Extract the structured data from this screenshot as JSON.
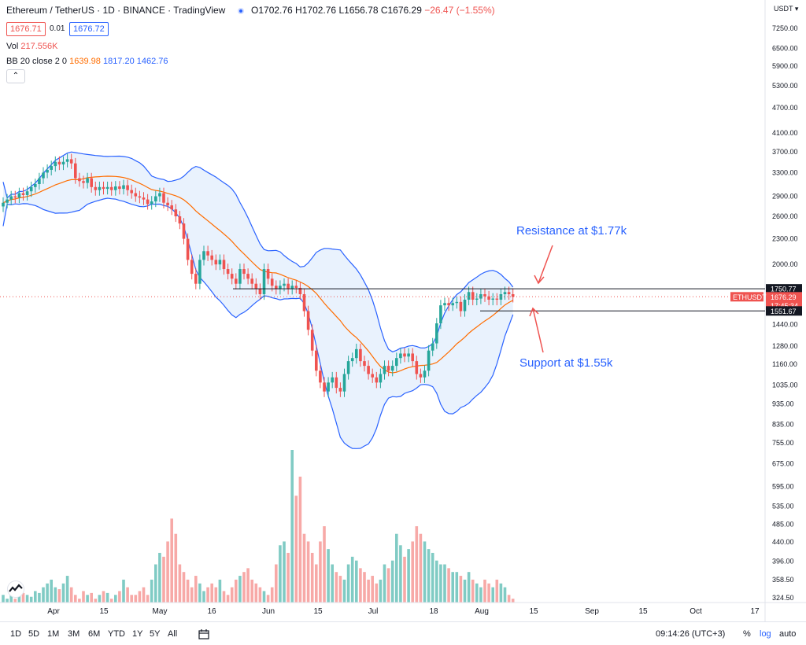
{
  "header": {
    "symbol": "Ethereum / TetherUS · 1D · BINANCE · TradingView",
    "ohlc": "O1702.76 H1702.76 L1656.78 C1676.29",
    "change": "−26.47 (−1.55%)",
    "bid": "1676.71",
    "spread": "0.01",
    "ask": "1676.72",
    "vol_label": "Vol",
    "vol_value": "217.556K",
    "bb_label": "BB 20 close 2 0",
    "bb_basis": "1639.98",
    "bb_upper": "1817.20",
    "bb_lower": "1462.76",
    "collapse_glyph": "⌃"
  },
  "colors": {
    "up": "#26a69a",
    "down": "#ef5350",
    "band": "#2962ff",
    "basis": "#ff6d00",
    "band_fill": "#e3effd",
    "annot": "#2962ff",
    "arrow": "#ef5350"
  },
  "axis": {
    "currency": "USDT ▾",
    "price_ticks": [
      "7250.00",
      "6500.00",
      "5900.00",
      "5300.00",
      "4700.00",
      "4100.00",
      "3700.00",
      "3300.00",
      "2900.00",
      "2600.00",
      "2300.00",
      "2000.00",
      "1750.77",
      "1676.29",
      "17:45:34",
      "1551.67",
      "1440.00",
      "1280.00",
      "1160.00",
      "1035.00",
      "935.00",
      "835.00",
      "755.00",
      "675.00",
      "595.00",
      "535.00",
      "485.00",
      "440.00",
      "396.00",
      "358.50",
      "324.50"
    ],
    "ticker_tag": "ETHUSDT",
    "time_labels": [
      "Apr",
      "15",
      "May",
      "16",
      "Jun",
      "15",
      "Jul",
      "18",
      "Aug",
      "15",
      "Sep",
      "15",
      "Oct",
      "17"
    ]
  },
  "annotations": {
    "resistance": "Resistance at $1.77k",
    "support": "Support at $1.55k"
  },
  "toolbar": {
    "timeframes": [
      "1D",
      "5D",
      "1M",
      "3M",
      "6M",
      "YTD",
      "1Y",
      "5Y",
      "All"
    ],
    "time": "09:14:26 (UTC+3)",
    "percent": "%",
    "log": "log",
    "auto": "auto"
  },
  "chart_data": {
    "type": "candlestick",
    "title": "Ethereum / TetherUS · 1D · BINANCE",
    "ylabel": "USDT",
    "y_scale": "log",
    "ylim": [
      750,
      7500
    ],
    "resistance_level": 1750.77,
    "support_level": 1551.67,
    "last_price": 1676.29,
    "x_range": [
      "2021-03-18",
      "2021-10-24"
    ],
    "x_dates_start": "2021-03-18",
    "candles_close": [
      2800,
      2850,
      2900,
      2880,
      2950,
      2920,
      2980,
      3050,
      3100,
      3200,
      3300,
      3350,
      3420,
      3500,
      3450,
      3500,
      3550,
      3470,
      3200,
      3150,
      3120,
      3200,
      3050,
      3000,
      3050,
      3020,
      3050,
      3000,
      3060,
      3020,
      3080,
      3000,
      2950,
      2900,
      2880,
      2850,
      2780,
      2820,
      2900,
      2950,
      2800,
      2760,
      2700,
      2600,
      2500,
      2300,
      2050,
      1900,
      1800,
      2050,
      2150,
      2100,
      2050,
      2000,
      2050,
      1950,
      1900,
      1850,
      1800,
      1950,
      1900,
      1850,
      1800,
      1750,
      1700,
      1950,
      1850,
      1780,
      1750,
      1780,
      1800,
      1750,
      1780,
      1760,
      1700,
      1550,
      1400,
      1250,
      1120,
      1050,
      1000,
      1050,
      1080,
      1020,
      1000,
      1100,
      1180,
      1200,
      1260,
      1180,
      1150,
      1100,
      1080,
      1050,
      1100,
      1150,
      1120,
      1150,
      1200,
      1230,
      1210,
      1230,
      1180,
      1100,
      1080,
      1120,
      1250,
      1300,
      1450,
      1600,
      1620,
      1600,
      1620,
      1630,
      1550,
      1650,
      1720,
      1650,
      1660,
      1700,
      1680,
      1650,
      1660,
      1650,
      1700,
      1720,
      1700,
      1676
    ],
    "volume": [
      340,
      330,
      350,
      330,
      360,
      345,
      340,
      335,
      350,
      345,
      360,
      370,
      380,
      360,
      355,
      370,
      390,
      360,
      340,
      330,
      350,
      340,
      345,
      330,
      340,
      350,
      345,
      330,
      340,
      350,
      380,
      360,
      340,
      340,
      350,
      360,
      340,
      380,
      420,
      450,
      440,
      480,
      540,
      500,
      420,
      400,
      380,
      360,
      390,
      370,
      350,
      360,
      370,
      360,
      380,
      350,
      340,
      360,
      380,
      390,
      400,
      410,
      380,
      370,
      360,
      350,
      340,
      360,
      420,
      470,
      480,
      450,
      720,
      600,
      650,
      500,
      480,
      450,
      420,
      480,
      520,
      460,
      420,
      400,
      390,
      380,
      420,
      440,
      430,
      410,
      400,
      380,
      390,
      370,
      380,
      420,
      410,
      430,
      500,
      470,
      440,
      460,
      480,
      520,
      500,
      480,
      460,
      450,
      430,
      420,
      420,
      410,
      400,
      400,
      390,
      380,
      400,
      380,
      370,
      360,
      380,
      370,
      360,
      380,
      370,
      360,
      340,
      330
    ]
  }
}
